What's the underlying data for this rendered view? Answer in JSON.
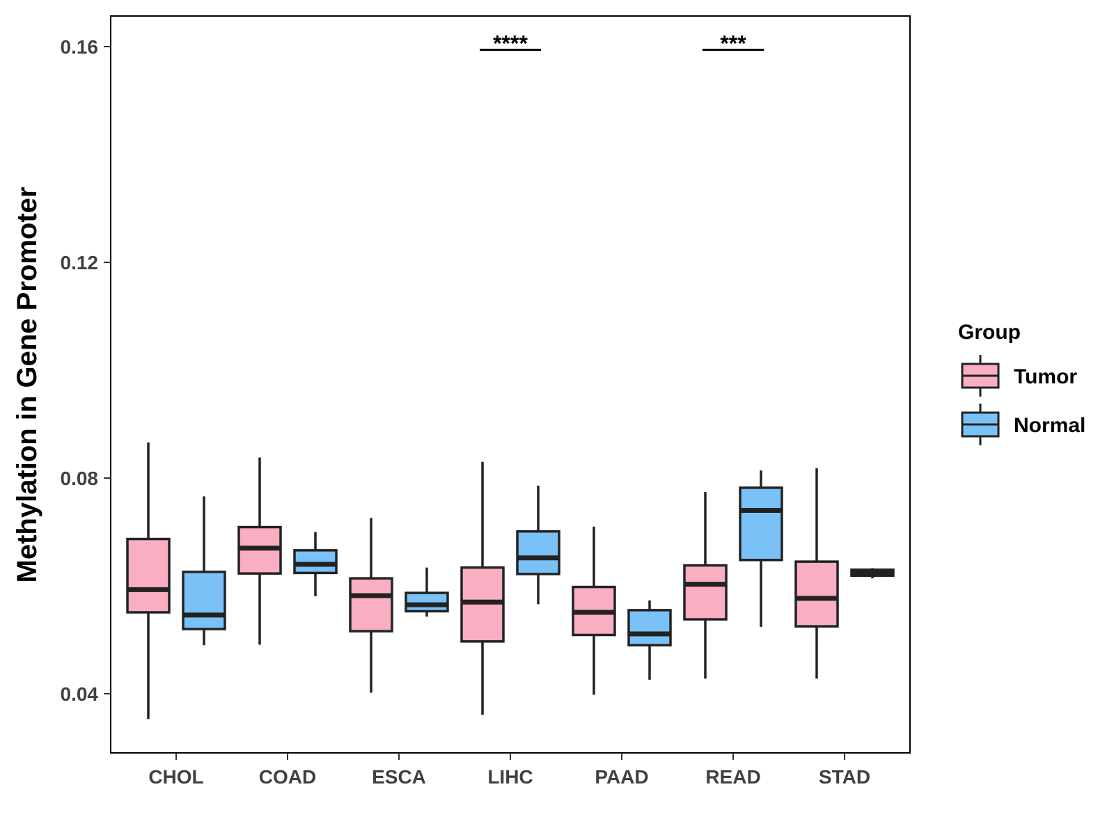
{
  "chart_data": {
    "type": "boxplot",
    "ylabel": "Methylation in Gene Promoter",
    "xlabel": "",
    "ylim": [
      0.029,
      0.166
    ],
    "yticks": [
      0.04,
      0.08,
      0.12,
      0.16
    ],
    "ytick_labels": [
      "0.04",
      "0.08",
      "0.12",
      "0.16"
    ],
    "categories": [
      "CHOL",
      "COAD",
      "ESCA",
      "LIHC",
      "PAAD",
      "READ",
      "STAD"
    ],
    "legend": {
      "title": "Group",
      "position": "right",
      "entries": [
        {
          "name": "Tumor",
          "color": "#F9AEC1"
        },
        {
          "name": "Normal",
          "color": "#7AC1F8"
        }
      ]
    },
    "series": [
      {
        "name": "Tumor",
        "color": "#F9AEC1",
        "boxes": [
          {
            "category": "CHOL",
            "whisker_low": 0.0353,
            "q1": 0.0551,
            "median": 0.0593,
            "q3": 0.0687,
            "whisker_high": 0.0866
          },
          {
            "category": "COAD",
            "whisker_low": 0.0491,
            "q1": 0.0623,
            "median": 0.067,
            "q3": 0.0709,
            "whisker_high": 0.0838
          },
          {
            "category": "ESCA",
            "whisker_low": 0.0402,
            "q1": 0.0516,
            "median": 0.0582,
            "q3": 0.0614,
            "whisker_high": 0.0726
          },
          {
            "category": "LIHC",
            "whisker_low": 0.0361,
            "q1": 0.0497,
            "median": 0.057,
            "q3": 0.0634,
            "whisker_high": 0.083
          },
          {
            "category": "PAAD",
            "whisker_low": 0.0398,
            "q1": 0.0509,
            "median": 0.0551,
            "q3": 0.0598,
            "whisker_high": 0.071
          },
          {
            "category": "READ",
            "whisker_low": 0.0428,
            "q1": 0.0538,
            "median": 0.0603,
            "q3": 0.0638,
            "whisker_high": 0.0774
          },
          {
            "category": "STAD",
            "whisker_low": 0.0428,
            "q1": 0.0525,
            "median": 0.0577,
            "q3": 0.0645,
            "whisker_high": 0.0818
          }
        ]
      },
      {
        "name": "Normal",
        "color": "#7AC1F8",
        "boxes": [
          {
            "category": "CHOL",
            "whisker_low": 0.049,
            "q1": 0.052,
            "median": 0.0546,
            "q3": 0.0626,
            "whisker_high": 0.0766
          },
          {
            "category": "COAD",
            "whisker_low": 0.0581,
            "q1": 0.0624,
            "median": 0.064,
            "q3": 0.0666,
            "whisker_high": 0.07
          },
          {
            "category": "ESCA",
            "whisker_low": 0.0543,
            "q1": 0.0553,
            "median": 0.0565,
            "q3": 0.0587,
            "whisker_high": 0.0634
          },
          {
            "category": "LIHC",
            "whisker_low": 0.0566,
            "q1": 0.0622,
            "median": 0.0652,
            "q3": 0.0701,
            "whisker_high": 0.0786
          },
          {
            "category": "PAAD",
            "whisker_low": 0.0426,
            "q1": 0.049,
            "median": 0.0511,
            "q3": 0.0555,
            "whisker_high": 0.0573
          },
          {
            "category": "READ",
            "whisker_low": 0.0524,
            "q1": 0.0648,
            "median": 0.074,
            "q3": 0.0782,
            "whisker_high": 0.0814
          },
          {
            "category": "STAD",
            "whisker_low": 0.0614,
            "q1": 0.0619,
            "median": 0.0624,
            "q3": 0.063,
            "whisker_high": 0.0633
          }
        ]
      }
    ],
    "significance": [
      {
        "category": "LIHC",
        "label": "****",
        "y": 0.1594
      },
      {
        "category": "READ",
        "label": "***",
        "y": 0.1594
      }
    ]
  }
}
